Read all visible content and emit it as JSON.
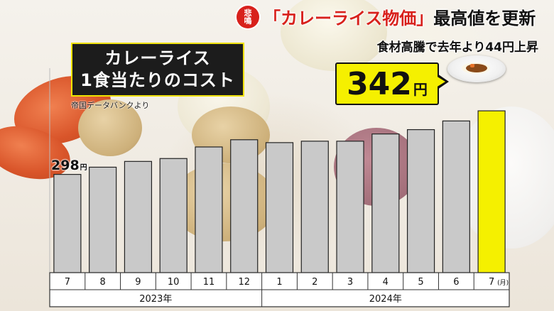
{
  "header": {
    "tag_line1": "悲",
    "tag_line2": "鳴",
    "title_prefix": "「カレーライス物価」",
    "title_suffix": "最高値を更新",
    "subtitle": "食材高騰で去年より44円上昇"
  },
  "label_box": {
    "line1": "カレーライス",
    "line2": "1食当たりのコスト"
  },
  "source": "帝国データバンクより",
  "first_value_label": {
    "value": "298",
    "unit": "円"
  },
  "callout": {
    "value": "342",
    "unit": "円"
  },
  "colors": {
    "bar": "#c9c9c9",
    "bar_stroke": "#222222",
    "highlight_bar": "#f5f000",
    "axis_bg": "#ffffff"
  },
  "chart_data": {
    "type": "bar",
    "categories": [
      "7",
      "8",
      "9",
      "10",
      "11",
      "12",
      "1",
      "2",
      "3",
      "4",
      "5",
      "6",
      "7"
    ],
    "x_unit_label": "(月)",
    "year_groups": [
      {
        "label": "2023年",
        "start": 0,
        "end": 5
      },
      {
        "label": "2024年",
        "start": 6,
        "end": 12
      }
    ],
    "values": [
      298,
      303,
      307,
      309,
      317,
      322,
      320,
      321,
      321,
      326,
      329,
      335,
      342
    ],
    "unit": "円",
    "highlight_index": 12,
    "ylim": [
      230,
      345
    ]
  }
}
